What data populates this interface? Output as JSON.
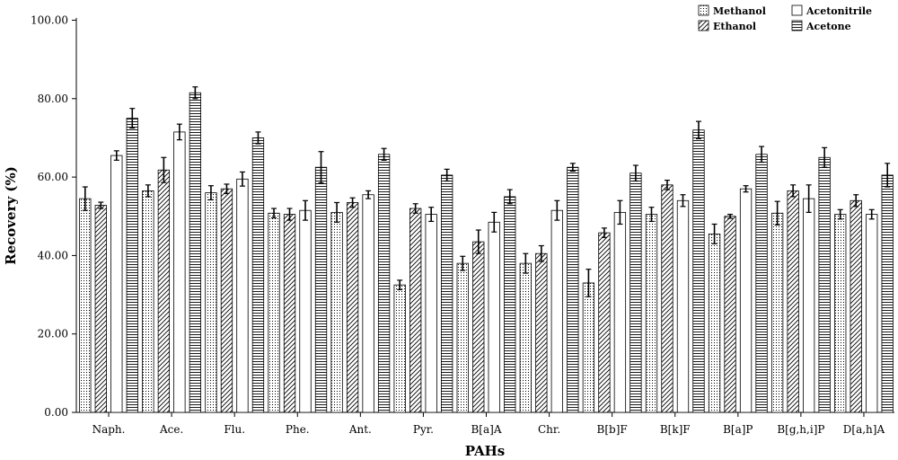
{
  "chart_data": {
    "type": "bar",
    "xlabel": "PAHs",
    "ylabel": "Recovery (%)",
    "ylim": [
      0,
      100
    ],
    "yticks": [
      "0.00",
      "20.00",
      "40.00",
      "60.00",
      "80.00",
      "100.00"
    ],
    "grid": false,
    "legend_position": "top-right",
    "categories": [
      "Naph.",
      "Ace.",
      "Flu.",
      "Phe.",
      "Ant.",
      "Pyr.",
      "B[a]A",
      "Chr.",
      "B[b]F",
      "B[k]F",
      "B[a]P",
      "B[g,h,i]P",
      "D[a,h]A"
    ],
    "series": [
      {
        "name": "Methanol",
        "pattern": "dots",
        "values": [
          54.5,
          56.5,
          56.0,
          50.8,
          51.0,
          32.5,
          38.0,
          38.0,
          33.0,
          50.5,
          45.5,
          50.8,
          50.5
        ],
        "errors": [
          3.0,
          1.5,
          1.8,
          1.2,
          2.5,
          1.2,
          1.8,
          2.5,
          3.5,
          1.8,
          2.5,
          3.0,
          1.2
        ]
      },
      {
        "name": "Ethanol",
        "pattern": "diagonal",
        "values": [
          52.8,
          61.8,
          57.0,
          50.5,
          53.5,
          52.0,
          43.5,
          40.5,
          45.8,
          58.0,
          50.0,
          56.5,
          54.0
        ],
        "errors": [
          0.8,
          3.2,
          1.2,
          1.5,
          1.2,
          1.2,
          3.0,
          2.0,
          1.2,
          1.2,
          0.5,
          1.5,
          1.5
        ]
      },
      {
        "name": "Acetonitrile",
        "pattern": "none",
        "values": [
          65.5,
          71.5,
          59.5,
          51.5,
          55.5,
          50.5,
          48.5,
          51.5,
          51.0,
          54.0,
          57.0,
          54.5,
          50.5
        ],
        "errors": [
          1.2,
          2.0,
          1.8,
          2.5,
          1.0,
          1.8,
          2.5,
          2.5,
          3.0,
          1.5,
          0.8,
          3.5,
          1.2
        ]
      },
      {
        "name": "Acetone",
        "pattern": "horizontal",
        "values": [
          75.0,
          81.5,
          70.0,
          62.5,
          65.8,
          60.5,
          55.0,
          62.5,
          61.0,
          72.0,
          65.8,
          65.0,
          60.5
        ],
        "errors": [
          2.5,
          1.5,
          1.5,
          4.0,
          1.5,
          1.5,
          1.8,
          1.0,
          2.0,
          2.2,
          2.0,
          2.5,
          3.0
        ]
      }
    ]
  }
}
